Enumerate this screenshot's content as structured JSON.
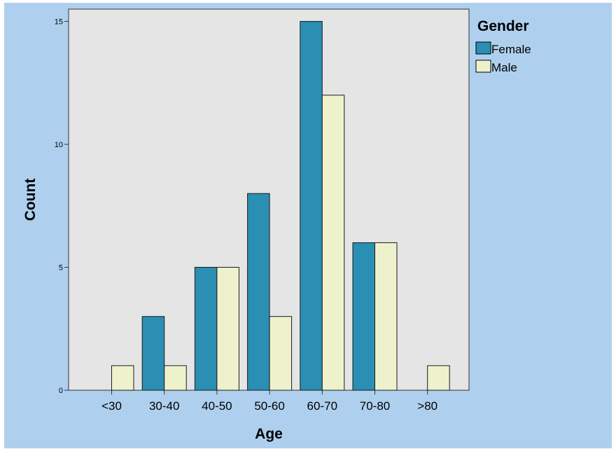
{
  "chart_data": {
    "type": "bar",
    "title": "",
    "xlabel": "Age",
    "ylabel": "Count",
    "categories": [
      "<30",
      "30-40",
      "40-50",
      "50-60",
      "60-70",
      "70-80",
      ">80"
    ],
    "series": [
      {
        "name": "Female",
        "values": [
          0,
          3,
          5,
          8,
          15,
          6,
          0
        ],
        "color": "#2a8fb3"
      },
      {
        "name": "Male",
        "values": [
          1,
          1,
          5,
          3,
          12,
          6,
          1
        ],
        "color": "#eef2cc"
      }
    ],
    "ylim": [
      0,
      15.5
    ],
    "yticks": [
      0,
      5,
      10,
      15
    ],
    "grid": false,
    "legend": {
      "title": "Gender",
      "position": "top-right"
    }
  }
}
